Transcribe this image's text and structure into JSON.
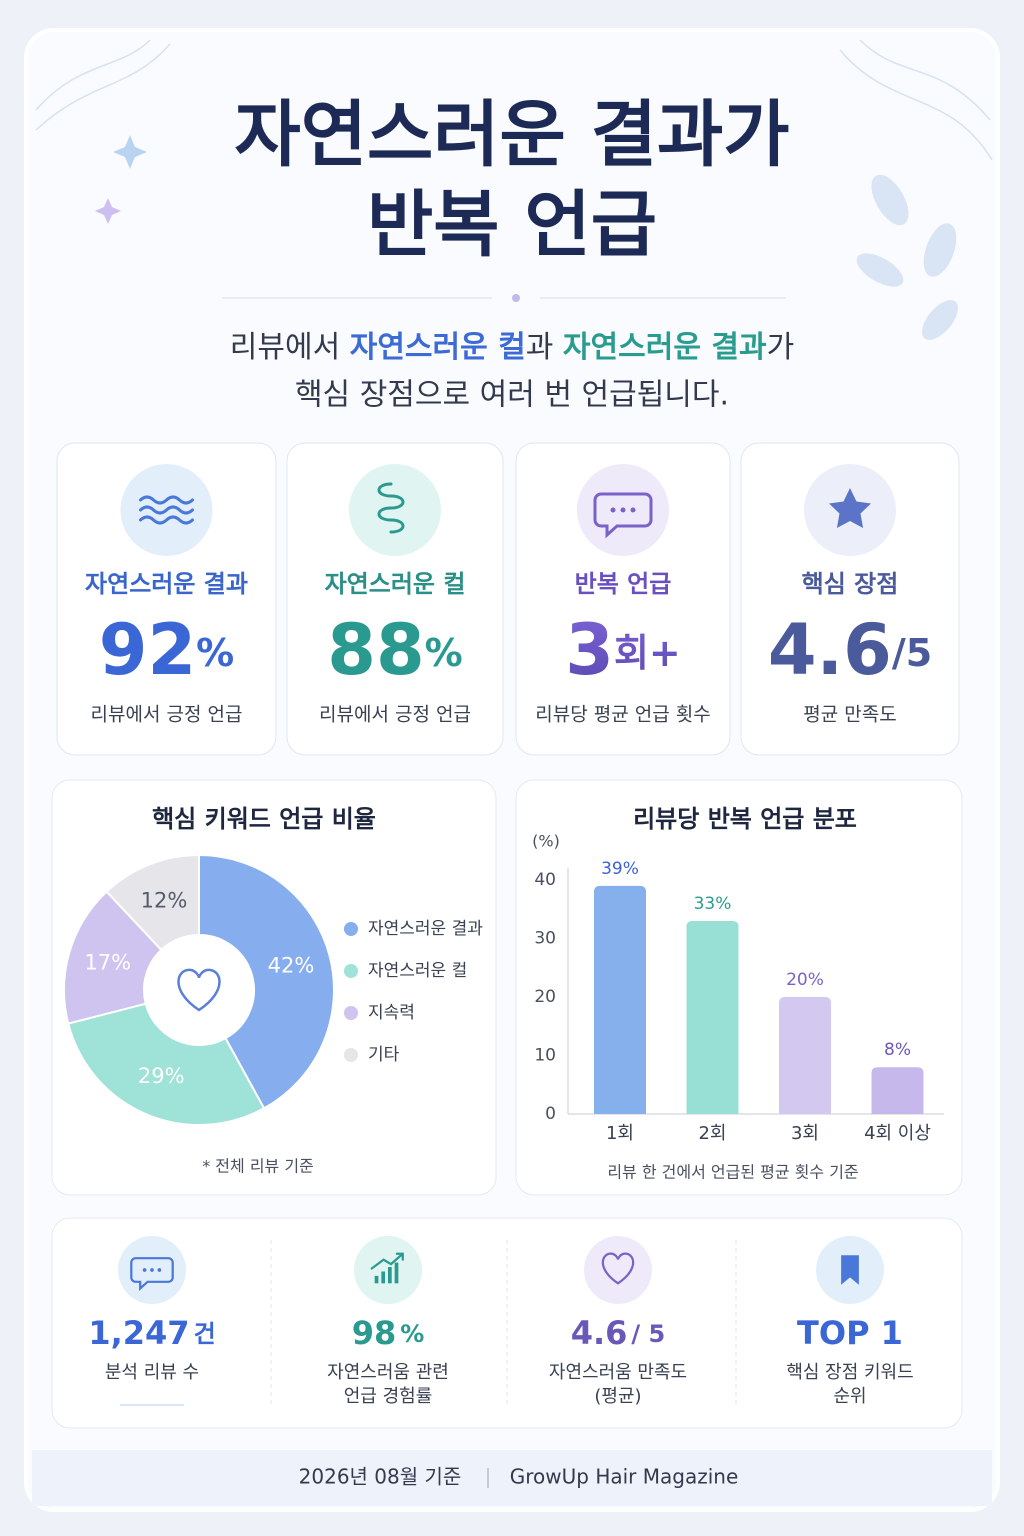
{
  "header": {
    "title_lines": [
      "자연스러운 결과가",
      "반복 언급"
    ],
    "subtitle_parts": [
      "리뷰에서 ",
      "자연스러운 컬",
      "과 ",
      "자연스러운 결과",
      "가"
    ],
    "subtitle_line2": "핵심 장점으로 여러 번 언급됩니다."
  },
  "cards": [
    {
      "label": "자연스러운 결과",
      "value": 92,
      "unit": "%",
      "note": "리뷰에서 긍정 언급"
    },
    {
      "label": "자연스러운 컬",
      "value": 88,
      "unit": "%",
      "note": "리뷰에서 긍정 언급"
    },
    {
      "label": "반복 언급",
      "value": 3,
      "unit": "회+",
      "note": "리뷰당 평균 언급 횟수"
    },
    {
      "label": "핵심 장점",
      "value": 4.6,
      "unit": "/5",
      "note": "평균 만족도"
    }
  ],
  "chart_data": [
    {
      "type": "pie",
      "title": "핵심 키워드 언급 비율",
      "categories": [
        "자연스러운 결과",
        "자연스러운 컬",
        "지속력",
        "기타"
      ],
      "values": [
        42,
        29,
        17,
        12
      ],
      "value_labels": [
        "42%",
        "29%",
        "17%",
        "12%"
      ],
      "colors": [
        "#86aeee",
        "#9fe2d7",
        "#cfc3ef",
        "#e6e6ea"
      ],
      "note": "* 전체 리뷰 기준"
    },
    {
      "type": "bar",
      "title": "리뷰당 반복 언급 분포",
      "ylabel": "(%)",
      "categories": [
        "1회",
        "2회",
        "3회",
        "4회 이상"
      ],
      "values": [
        39,
        33,
        20,
        8
      ],
      "value_labels": [
        "39%",
        "33%",
        "20%",
        "8%"
      ],
      "colors": [
        "#86b0ec",
        "#98e0d6",
        "#d2c8f0",
        "#c6b8ea"
      ],
      "ylim": [
        0,
        40
      ],
      "yticks": [
        0,
        10,
        20,
        30,
        40
      ],
      "note": "리뷰 한 건에서 언급된 평균 횟수 기준"
    }
  ],
  "stats": [
    {
      "value": "1,247",
      "unit": "건",
      "label": [
        "분석 리뷰 수"
      ]
    },
    {
      "value": 98,
      "unit": "%",
      "label": [
        "자연스러움 관련",
        "언급 경험률"
      ]
    },
    {
      "value": 4.6,
      "unit": "/ 5",
      "label": [
        "자연스러움 만족도",
        "(평균)"
      ]
    },
    {
      "value": "TOP 1",
      "label": [
        "핵심 장점 키워드",
        "순위"
      ]
    }
  ],
  "footer": [
    "2026년 08월 기준",
    "GrowUp Hair Magazine"
  ]
}
